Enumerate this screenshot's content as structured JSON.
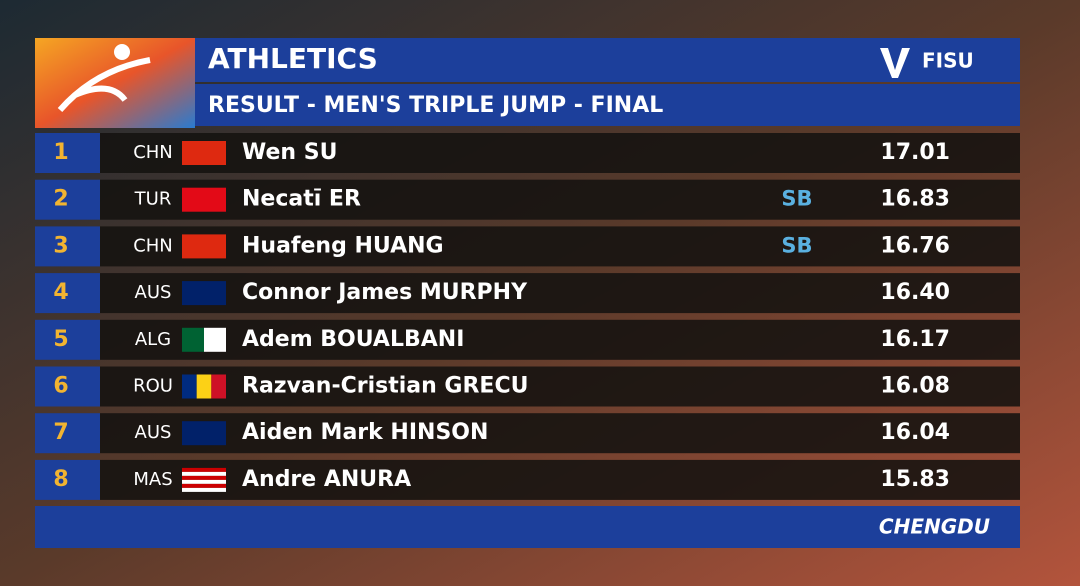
{
  "header": {
    "title": "ATHLETICS",
    "subtitle": "RESULT - MEN'S TRIPLE JUMP - FINAL",
    "logo": "FISU"
  },
  "table": {
    "rows": [
      {
        "rank": 1,
        "country": "CHN",
        "name": "Wen SU",
        "note": null,
        "mark": "17.01"
      },
      {
        "rank": 2,
        "country": "TUR",
        "name": "Necatī ER",
        "note": "SB",
        "mark": "16.83"
      },
      {
        "rank": 3,
        "country": "CHN",
        "name": "Huafeng HUANG",
        "note": "SB",
        "mark": "16.76"
      },
      {
        "rank": 4,
        "country": "AUS",
        "name": "Connor James MURPHY",
        "note": null,
        "mark": "16.40"
      },
      {
        "rank": 5,
        "country": "ALG",
        "name": "Adem BOUALBANI",
        "note": null,
        "mark": "16.17"
      },
      {
        "rank": 6,
        "country": "ROU",
        "name": "Razvan-Cristian GRECU",
        "note": null,
        "mark": "16.08"
      },
      {
        "rank": 7,
        "country": "AUS",
        "name": "Aiden Mark HINSON",
        "note": null,
        "mark": "16.04"
      },
      {
        "rank": 8,
        "country": "MAS",
        "name": "Andre ANURA",
        "note": null,
        "mark": "15.83"
      }
    ]
  },
  "footer": {
    "location": "CHENGDU"
  }
}
